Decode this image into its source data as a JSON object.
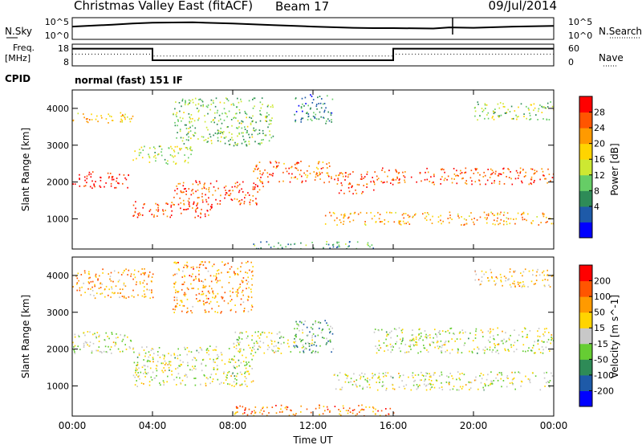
{
  "header": {
    "title": "Christmas Valley East (fitACF)",
    "beam": "Beam 17",
    "date": "09/Jul/2014"
  },
  "top_panel_1": {
    "left_label": "N.Sky",
    "left_ticks": [
      "10^5",
      "10^0"
    ],
    "right_ticks": [
      "10^5",
      "10^0"
    ],
    "right_label": "N.Search"
  },
  "top_panel_2": {
    "left_label_1": "Freq.",
    "left_label_2": "[MHz]",
    "left_ticks": [
      "18",
      "8"
    ],
    "right_ticks": [
      "60",
      "0"
    ],
    "right_label": "Nave"
  },
  "cpid": {
    "label": "CPID",
    "value": "normal (fast) 151 IF"
  },
  "chart_data": [
    {
      "type": "heatmap",
      "name": "power",
      "xlabel": "Time UT",
      "ylabel": "Slant Range [km]",
      "x_ticks": [
        "00:00",
        "04:00",
        "08:00",
        "12:00",
        "16:00",
        "20:00",
        "00:00"
      ],
      "x_tick_hours": [
        0,
        4,
        8,
        12,
        16,
        20,
        24
      ],
      "xlim_hours": [
        0,
        24
      ],
      "y_ticks": [
        1000,
        2000,
        3000,
        4000
      ],
      "ylim": [
        180,
        4500
      ],
      "colorbar": {
        "label": "Power [dB]",
        "ticks": [
          "28",
          "24",
          "20",
          "16",
          "12",
          "8",
          "4"
        ],
        "range": [
          0,
          32
        ],
        "colors": [
          "#0000ff",
          "#1e5aa8",
          "#2e8b57",
          "#66cd66",
          "#cde832",
          "#ffd400",
          "#ff9a00",
          "#ff5500",
          "#ff0000"
        ]
      },
      "bands": [
        {
          "t": [
            0,
            3
          ],
          "r": [
            3600,
            3900
          ],
          "level": 0.65
        },
        {
          "t": [
            0,
            2.8
          ],
          "r": [
            1850,
            2300
          ],
          "level": 0.95
        },
        {
          "t": [
            3,
            7
          ],
          "r": [
            1050,
            1500
          ],
          "level": 0.9
        },
        {
          "t": [
            5,
            9.5
          ],
          "r": [
            1400,
            2050
          ],
          "level": 0.85
        },
        {
          "t": [
            9,
            13
          ],
          "r": [
            2000,
            2600
          ],
          "level": 0.8
        },
        {
          "t": [
            13,
            15
          ],
          "r": [
            1700,
            2300
          ],
          "level": 0.85
        },
        {
          "t": [
            15,
            24
          ],
          "r": [
            1950,
            2400
          ],
          "level": 0.85
        },
        {
          "t": [
            12.5,
            24
          ],
          "r": [
            850,
            1200
          ],
          "level": 0.7
        },
        {
          "t": [
            3,
            6
          ],
          "r": [
            2500,
            3000
          ],
          "level": 0.5
        },
        {
          "t": [
            5,
            10
          ],
          "r": [
            3000,
            4300
          ],
          "level": 0.4
        },
        {
          "t": [
            11,
            13
          ],
          "r": [
            3600,
            4400
          ],
          "level": 0.25
        },
        {
          "t": [
            9,
            15
          ],
          "r": [
            200,
            400
          ],
          "level": 0.3
        },
        {
          "t": [
            20,
            24
          ],
          "r": [
            3700,
            4200
          ],
          "level": 0.45
        }
      ]
    },
    {
      "type": "heatmap",
      "name": "velocity",
      "xlabel": "Time UT",
      "ylabel": "Slant Range [km]",
      "x_ticks": [
        "00:00",
        "04:00",
        "08:00",
        "12:00",
        "16:00",
        "20:00",
        "00:00"
      ],
      "x_tick_hours": [
        0,
        4,
        8,
        12,
        16,
        20,
        24
      ],
      "xlim_hours": [
        0,
        24
      ],
      "y_ticks": [
        1000,
        2000,
        3000,
        4000
      ],
      "ylim": [
        180,
        4500
      ],
      "colorbar": {
        "label": "Velocity [m s^-1]",
        "ticks": [
          "200",
          "100",
          "50",
          "15",
          "-15",
          "-50",
          "-100",
          "-200"
        ],
        "range": [
          -250,
          250
        ],
        "colors": [
          "#0000ff",
          "#1e5aa8",
          "#2e8b57",
          "#66cd33",
          "#c8c8c8",
          "#ffd400",
          "#ff9a00",
          "#ff5500",
          "#ff0000"
        ]
      },
      "bands": [
        {
          "t": [
            0,
            3
          ],
          "r": [
            1900,
            2500
          ],
          "level": 0.5
        },
        {
          "t": [
            3,
            9
          ],
          "r": [
            1000,
            2100
          ],
          "level": 0.5
        },
        {
          "t": [
            8,
            12
          ],
          "r": [
            1900,
            2500
          ],
          "level": 0.5
        },
        {
          "t": [
            11,
            13
          ],
          "r": [
            1900,
            2800
          ],
          "level": 0.32
        },
        {
          "t": [
            15,
            24
          ],
          "r": [
            1900,
            2600
          ],
          "level": 0.5
        },
        {
          "t": [
            13,
            24
          ],
          "r": [
            900,
            1400
          ],
          "level": 0.5
        },
        {
          "t": [
            0,
            4
          ],
          "r": [
            3400,
            4200
          ],
          "level": 0.7
        },
        {
          "t": [
            5,
            9
          ],
          "r": [
            3000,
            4400
          ],
          "level": 0.72
        },
        {
          "t": [
            8,
            16
          ],
          "r": [
            200,
            500
          ],
          "level": 0.75
        },
        {
          "t": [
            20,
            24
          ],
          "r": [
            3700,
            4200
          ],
          "level": 0.62
        }
      ]
    }
  ],
  "time_series": {
    "x_hours": [
      0,
      2,
      3,
      4,
      6,
      8,
      10,
      12,
      14,
      15,
      16,
      18,
      18.8,
      20,
      22,
      24
    ],
    "n_sky_log": [
      3.1,
      3.6,
      3.9,
      4.1,
      4.2,
      3.9,
      3.5,
      3.1,
      2.8,
      2.7,
      2.7,
      2.6,
      2.9,
      2.8,
      3.1,
      3.3
    ],
    "freq_mhz": [
      16.5,
      16.5,
      16.5,
      10.5,
      10.5,
      10.5,
      10.5,
      10.5,
      10.5,
      10.5,
      16.5,
      16.5,
      16.5,
      16.5,
      16.5,
      16.5
    ],
    "nave": [
      34,
      34,
      34,
      28,
      28,
      28,
      28,
      28,
      28,
      28,
      34,
      34,
      34,
      34,
      34,
      34
    ]
  }
}
